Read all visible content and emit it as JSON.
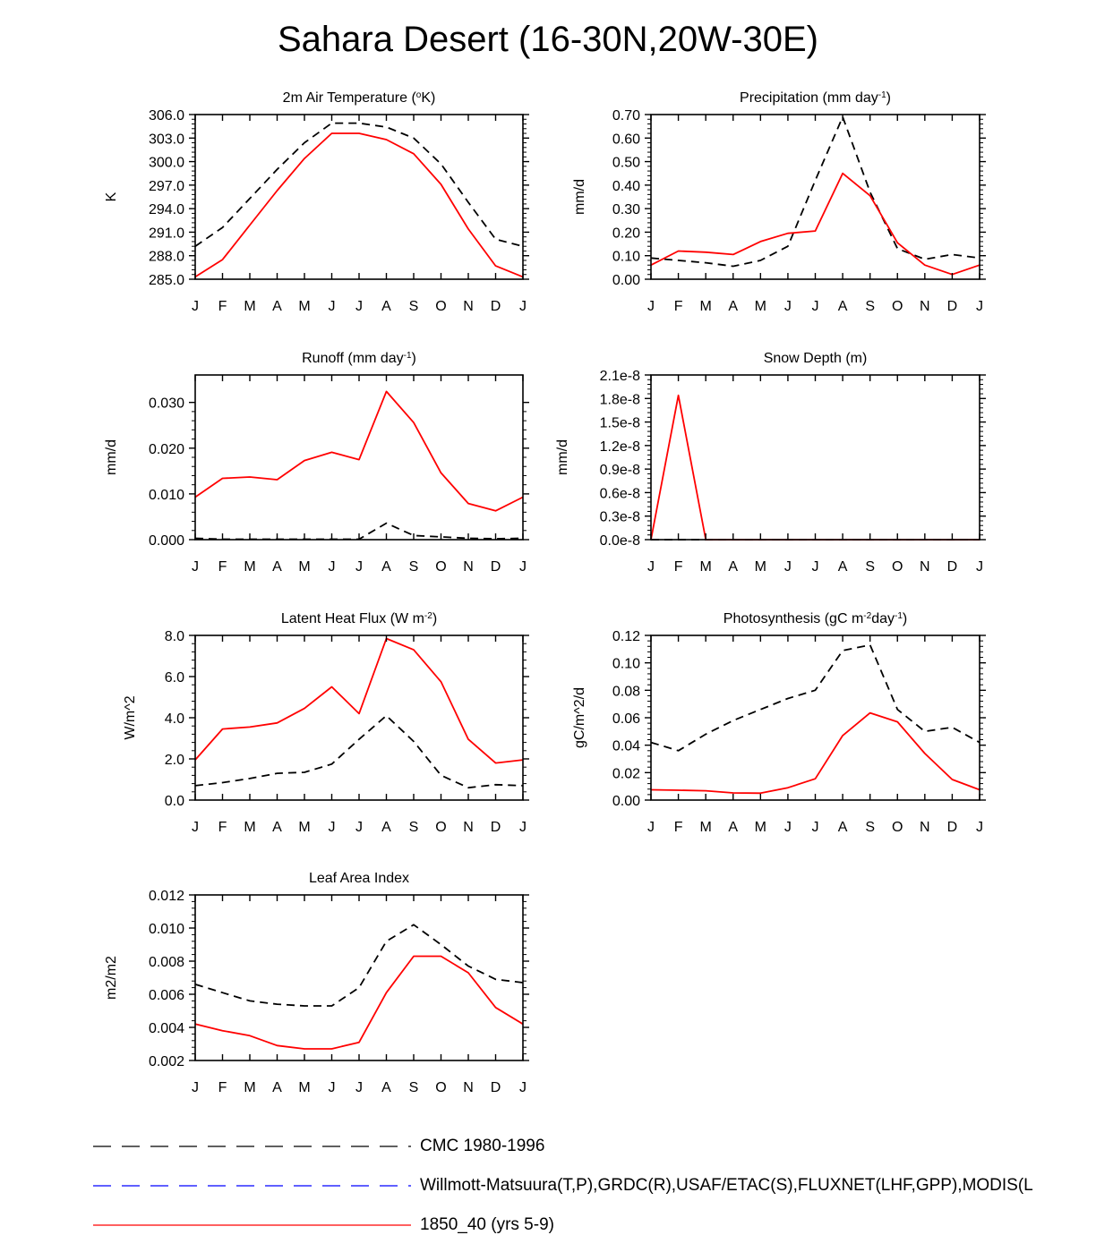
{
  "title": "Sahara Desert (16-30N,20W-30E)",
  "colors": {
    "model": "#ff0000",
    "reference": "#000000",
    "obs": "#0000ff"
  },
  "legend": [
    {
      "label": "CMC 1980-1996",
      "style": "dashed",
      "color": "#000000"
    },
    {
      "label": "Willmott-Matsuura(T,P),GRDC(R),USAF/ETAC(S),FLUXNET(LHF,GPP),MODIS(L",
      "style": "dashed",
      "color": "#0000ff"
    },
    {
      "label": "1850_40 (yrs 5-9)",
      "style": "solid",
      "color": "#ff0000"
    }
  ],
  "chart_data": [
    {
      "type": "line",
      "title": "2m Air Temperature (°K)",
      "title_parts": {
        "pre": "2m Air Temperature (",
        "sup": "o",
        "post": "K)"
      },
      "ylabel": "K",
      "ylim": [
        285.0,
        306.0
      ],
      "yticks": [
        285.0,
        288.0,
        291.0,
        294.0,
        297.0,
        300.0,
        303.0,
        306.0
      ],
      "ytick_labels": [
        "285.0",
        "288.0",
        "291.0",
        "294.0",
        "297.0",
        "300.0",
        "303.0",
        "306.0"
      ],
      "x": [
        "J",
        "F",
        "M",
        "A",
        "M",
        "J",
        "J",
        "A",
        "S",
        "O",
        "N",
        "D",
        "J"
      ],
      "series": [
        {
          "name": "CMC 1980-1996",
          "style": "dashed",
          "values": [
            289.2,
            291.6,
            295.3,
            299.0,
            302.4,
            304.9,
            304.9,
            304.4,
            303.0,
            299.7,
            294.8,
            290.1,
            289.2
          ]
        },
        {
          "name": "1850_40 (yrs 5-9)",
          "style": "solid",
          "values": [
            285.3,
            287.5,
            291.9,
            296.3,
            300.4,
            303.6,
            303.6,
            302.8,
            301.0,
            297.1,
            291.4,
            286.7,
            285.3
          ]
        }
      ]
    },
    {
      "type": "line",
      "title": "Precipitation (mm day-1)",
      "title_parts": {
        "pre": "Precipitation (mm day",
        "sup": "-1",
        "post": ")"
      },
      "ylabel": "mm/d",
      "ylim": [
        0.0,
        0.7
      ],
      "yticks": [
        0.0,
        0.1,
        0.2,
        0.3,
        0.4,
        0.5,
        0.6,
        0.7
      ],
      "ytick_labels": [
        "0.00",
        "0.10",
        "0.20",
        "0.30",
        "0.40",
        "0.50",
        "0.60",
        "0.70"
      ],
      "x": [
        "J",
        "F",
        "M",
        "A",
        "M",
        "J",
        "J",
        "A",
        "S",
        "O",
        "N",
        "D",
        "J"
      ],
      "series": [
        {
          "name": "CMC 1980-1996",
          "style": "dashed",
          "values": [
            0.09,
            0.08,
            0.07,
            0.055,
            0.08,
            0.14,
            0.42,
            0.69,
            0.37,
            0.13,
            0.085,
            0.105,
            0.09
          ]
        },
        {
          "name": "1850_40 (yrs 5-9)",
          "style": "solid",
          "values": [
            0.06,
            0.12,
            0.115,
            0.105,
            0.16,
            0.195,
            0.205,
            0.45,
            0.355,
            0.155,
            0.06,
            0.02,
            0.06
          ]
        }
      ]
    },
    {
      "type": "line",
      "title": "Runoff (mm day-1)",
      "title_parts": {
        "pre": "Runoff (mm day",
        "sup": "-1",
        "post": ")"
      },
      "ylabel": "mm/d",
      "ylim": [
        0.0,
        0.036
      ],
      "yticks": [
        0.0,
        0.01,
        0.02,
        0.03
      ],
      "ytick_labels": [
        "0.000",
        "0.010",
        "0.020",
        "0.030"
      ],
      "x": [
        "J",
        "F",
        "M",
        "A",
        "M",
        "J",
        "J",
        "A",
        "S",
        "O",
        "N",
        "D",
        "J"
      ],
      "series": [
        {
          "name": "CMC 1980-1996",
          "style": "dashed",
          "values": [
            0.0003,
            0.0001,
            0.0001,
            0.0001,
            0.0001,
            0.0001,
            0.0001,
            0.0036,
            0.0009,
            0.0006,
            0.0003,
            0.0002,
            0.0003
          ]
        },
        {
          "name": "1850_40 (yrs 5-9)",
          "style": "solid",
          "values": [
            0.0093,
            0.0134,
            0.0137,
            0.0131,
            0.0173,
            0.0191,
            0.0175,
            0.0324,
            0.0256,
            0.0146,
            0.0079,
            0.0063,
            0.0093
          ]
        }
      ]
    },
    {
      "type": "line",
      "title": "Snow Depth (m)",
      "title_parts": {
        "pre": "Snow Depth (m)",
        "sup": "",
        "post": ""
      },
      "ylabel": "mm/d",
      "ylim": [
        0.0,
        2.1
      ],
      "yticks": [
        0.0,
        0.3,
        0.6,
        0.9,
        1.2,
        1.5,
        1.8,
        2.1
      ],
      "ytick_labels": [
        "0.0e-8",
        "0.3e-8",
        "0.6e-8",
        "0.9e-8",
        "1.2e-8",
        "1.5e-8",
        "1.8e-8",
        "2.1e-8"
      ],
      "x": [
        "J",
        "F",
        "M",
        "A",
        "M",
        "J",
        "J",
        "A",
        "S",
        "O",
        "N",
        "D",
        "J"
      ],
      "series": [
        {
          "name": "CMC 1980-1996",
          "style": "dashed",
          "values": [
            0,
            0,
            0,
            0,
            0,
            0,
            0,
            0,
            0,
            0,
            0,
            0,
            0
          ]
        },
        {
          "name": "1850_40 (yrs 5-9)",
          "style": "solid",
          "values": [
            0,
            1.84,
            0,
            0,
            0,
            0,
            0,
            0,
            0,
            0,
            0,
            0,
            0
          ]
        }
      ]
    },
    {
      "type": "line",
      "title": "Latent Heat Flux (W m-2)",
      "title_parts": {
        "pre": "Latent Heat Flux (W m",
        "sup": "-2",
        "post": ")"
      },
      "ylabel": "W/m^2",
      "ylim": [
        0.0,
        8.0
      ],
      "yticks": [
        0.0,
        2.0,
        4.0,
        6.0,
        8.0
      ],
      "ytick_labels": [
        "0.0",
        "2.0",
        "4.0",
        "6.0",
        "8.0"
      ],
      "x": [
        "J",
        "F",
        "M",
        "A",
        "M",
        "J",
        "J",
        "A",
        "S",
        "O",
        "N",
        "D",
        "J"
      ],
      "series": [
        {
          "name": "CMC 1980-1996",
          "style": "dashed",
          "values": [
            0.7,
            0.85,
            1.05,
            1.3,
            1.35,
            1.75,
            2.95,
            4.1,
            2.85,
            1.2,
            0.6,
            0.75,
            0.7
          ]
        },
        {
          "name": "1850_40 (yrs 5-9)",
          "style": "solid",
          "values": [
            1.95,
            3.45,
            3.55,
            3.75,
            4.45,
            5.5,
            4.2,
            7.85,
            7.3,
            5.75,
            2.95,
            1.8,
            1.95
          ]
        }
      ]
    },
    {
      "type": "line",
      "title": "Photosynthesis (gC m-2day-1)",
      "title_parts": {
        "pre": "Photosynthesis (gC m",
        "sup": "-2",
        "mid": "day",
        "sup2": "-1",
        "post": ")"
      },
      "ylabel": "gC/m^2/d",
      "ylim": [
        0.0,
        0.12
      ],
      "yticks": [
        0.0,
        0.02,
        0.04,
        0.06,
        0.08,
        0.1,
        0.12
      ],
      "ytick_labels": [
        "0.00",
        "0.02",
        "0.04",
        "0.06",
        "0.08",
        "0.10",
        "0.12"
      ],
      "x": [
        "J",
        "F",
        "M",
        "A",
        "M",
        "J",
        "J",
        "A",
        "S",
        "O",
        "N",
        "D",
        "J"
      ],
      "series": [
        {
          "name": "CMC 1980-1996",
          "style": "dashed",
          "values": [
            0.042,
            0.036,
            0.048,
            0.058,
            0.066,
            0.074,
            0.08,
            0.109,
            0.113,
            0.066,
            0.05,
            0.053,
            0.042
          ]
        },
        {
          "name": "1850_40 (yrs 5-9)",
          "style": "solid",
          "values": [
            0.0075,
            0.0072,
            0.0068,
            0.0052,
            0.005,
            0.009,
            0.0155,
            0.047,
            0.0635,
            0.057,
            0.034,
            0.015,
            0.0075
          ]
        }
      ]
    },
    {
      "type": "line",
      "title": "Leaf Area Index",
      "title_parts": {
        "pre": "Leaf Area Index",
        "sup": "",
        "post": ""
      },
      "ylabel": "m2/m2",
      "ylim": [
        0.002,
        0.012
      ],
      "yticks": [
        0.002,
        0.004,
        0.006,
        0.008,
        0.01,
        0.012
      ],
      "ytick_labels": [
        "0.002",
        "0.004",
        "0.006",
        "0.008",
        "0.010",
        "0.012"
      ],
      "x": [
        "J",
        "F",
        "M",
        "A",
        "M",
        "J",
        "J",
        "A",
        "S",
        "O",
        "N",
        "D",
        "J"
      ],
      "series": [
        {
          "name": "CMC 1980-1996",
          "style": "dashed",
          "values": [
            0.0066,
            0.0061,
            0.0056,
            0.0054,
            0.0053,
            0.0053,
            0.0064,
            0.0092,
            0.0102,
            0.009,
            0.0077,
            0.0069,
            0.0067
          ]
        },
        {
          "name": "1850_40 (yrs 5-9)",
          "style": "solid",
          "values": [
            0.0042,
            0.0038,
            0.0035,
            0.0029,
            0.0027,
            0.0027,
            0.0031,
            0.0061,
            0.0083,
            0.0083,
            0.0073,
            0.0052,
            0.0042
          ]
        }
      ]
    }
  ]
}
